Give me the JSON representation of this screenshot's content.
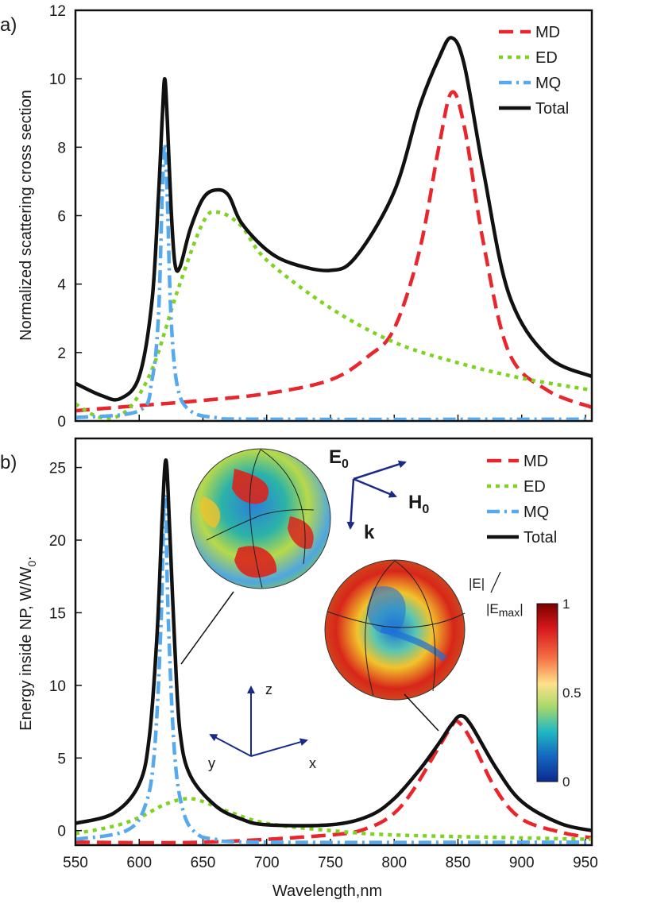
{
  "chart_data": [
    {
      "panel": "a)",
      "type": "line",
      "ylabel": "Normalized scattering cross section",
      "xlim": [
        550,
        955
      ],
      "ylim": [
        0,
        12
      ],
      "yticks": [
        "0",
        "2",
        "4",
        "6",
        "8",
        "10",
        "12"
      ],
      "legend_position": "top-right",
      "series": [
        {
          "name": "MD",
          "color": "#e8262b",
          "style": "dashed",
          "x": [
            550,
            600,
            650,
            700,
            750,
            780,
            800,
            820,
            835,
            845,
            855,
            870,
            890,
            920,
            955
          ],
          "y": [
            0.3,
            0.45,
            0.6,
            0.8,
            1.2,
            1.9,
            2.7,
            5.0,
            8.0,
            9.6,
            8.6,
            5.2,
            2.0,
            0.9,
            0.4
          ]
        },
        {
          "name": "ED",
          "color": "#7ed321",
          "style": "dotted",
          "x": [
            550,
            570,
            590,
            610,
            630,
            650,
            662,
            680,
            700,
            750,
            800,
            850,
            900,
            955
          ],
          "y": [
            0.5,
            0.1,
            0.3,
            1.5,
            3.8,
            5.8,
            6.1,
            5.7,
            4.7,
            3.3,
            2.3,
            1.7,
            1.25,
            0.9
          ]
        },
        {
          "name": "MQ",
          "color": "#55a9ec",
          "style": "dashdot",
          "x": [
            550,
            600,
            610,
            615,
            618,
            620,
            622,
            625,
            630,
            640,
            660,
            700,
            955
          ],
          "y": [
            0.1,
            0.3,
            1.2,
            3.0,
            6.5,
            8.1,
            6.5,
            3.0,
            1.0,
            0.3,
            0.1,
            0.05,
            0.05
          ]
        },
        {
          "name": "Total",
          "color": "#111111",
          "style": "solid",
          "x": [
            550,
            570,
            585,
            600,
            610,
            615,
            618,
            620,
            622,
            625,
            628,
            632,
            640,
            650,
            660,
            670,
            680,
            700,
            720,
            750,
            770,
            800,
            820,
            835,
            845,
            855,
            870,
            890,
            920,
            955
          ],
          "y": [
            1.1,
            0.75,
            0.65,
            1.3,
            3.5,
            6.5,
            8.8,
            10.0,
            8.8,
            6.2,
            4.6,
            4.5,
            5.6,
            6.5,
            6.75,
            6.6,
            5.8,
            5.0,
            4.6,
            4.4,
            4.8,
            6.7,
            9.2,
            10.6,
            11.2,
            10.4,
            7.3,
            3.7,
            1.9,
            1.3
          ]
        }
      ]
    },
    {
      "panel": "b)",
      "type": "line",
      "xlabel": "Wavelength,nm",
      "ylabel": "Energy inside NP, W/W",
      "ylabel_sub": "0",
      "ylabel_tail": ".",
      "xlim": [
        550,
        955
      ],
      "ylim": [
        -1,
        27
      ],
      "xticks": [
        "550",
        "600",
        "650",
        "700",
        "750",
        "800",
        "850",
        "900",
        "950"
      ],
      "yticks": [
        "0",
        "5",
        "10",
        "15",
        "20",
        "25"
      ],
      "legend_position": "top-right",
      "series": [
        {
          "name": "MD",
          "color": "#e8262b",
          "style": "dashed",
          "x": [
            550,
            650,
            750,
            780,
            800,
            815,
            830,
            845,
            850,
            860,
            880,
            900,
            930,
            955
          ],
          "y": [
            -0.8,
            -0.8,
            -0.3,
            0.2,
            1.2,
            2.8,
            5.0,
            7.2,
            7.5,
            6.3,
            2.8,
            0.8,
            -0.1,
            -0.5
          ]
        },
        {
          "name": "ED",
          "color": "#7ed321",
          "style": "dotted",
          "x": [
            550,
            580,
            600,
            620,
            637,
            650,
            670,
            700,
            750,
            800,
            900,
            955
          ],
          "y": [
            -0.2,
            0.3,
            0.9,
            1.8,
            2.2,
            2.0,
            1.3,
            0.5,
            0.0,
            -0.3,
            -0.5,
            -0.6
          ]
        },
        {
          "name": "MQ",
          "color": "#55a9ec",
          "style": "dashdot",
          "x": [
            550,
            590,
            605,
            612,
            617,
            620,
            623,
            628,
            635,
            645,
            660,
            700,
            955
          ],
          "y": [
            -0.6,
            0.0,
            1.8,
            5.5,
            14.0,
            23.0,
            14.0,
            5.0,
            1.2,
            -0.2,
            -0.6,
            -0.8,
            -0.8
          ]
        },
        {
          "name": "Total",
          "color": "#111111",
          "style": "solid",
          "x": [
            550,
            580,
            600,
            608,
            614,
            618,
            621,
            624,
            628,
            632,
            640,
            660,
            680,
            700,
            750,
            780,
            800,
            820,
            835,
            845,
            852,
            860,
            880,
            900,
            930,
            955
          ],
          "y": [
            0.5,
            1.2,
            3.2,
            6.5,
            13.5,
            21.5,
            25.5,
            20.5,
            12.5,
            6.8,
            3.8,
            1.7,
            0.8,
            0.4,
            0.4,
            1.0,
            2.2,
            4.2,
            6.0,
            7.3,
            7.9,
            7.3,
            4.3,
            2.0,
            0.5,
            0.0
          ]
        }
      ],
      "inset": {
        "incident_field_labels": [
          "E",
          "H",
          "k"
        ],
        "incident_field_sub": "0",
        "axes_labels": [
          "z",
          "y",
          "x"
        ],
        "colorbar_label_main": "|E|",
        "colorbar_label_den": "|E",
        "colorbar_label_sub": "max",
        "colorbar_label_close": "|",
        "colorbar_ticks": [
          "1",
          "0.5",
          "0"
        ],
        "colorbar_colors": [
          "#7a0000",
          "#d7191c",
          "#f46d43",
          "#fee08b",
          "#a6d96a",
          "#1fb8c3",
          "#1565c0",
          "#0a2a8f"
        ]
      }
    }
  ]
}
